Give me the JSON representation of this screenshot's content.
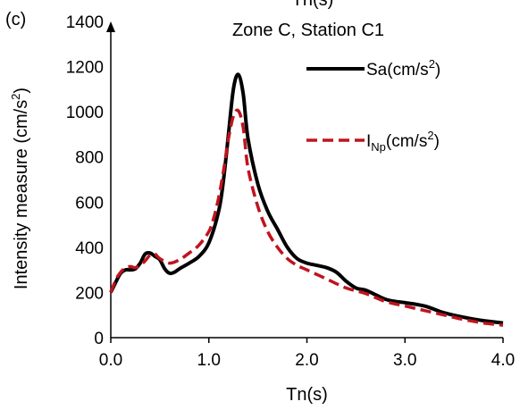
{
  "chart_data": {
    "type": "line",
    "panel_label": "(c)",
    "title": "Zone C, Station C1",
    "top_cut_label": "Tn(s)",
    "xlabel": "Tn(s)",
    "ylabel": "Intensity measure (cm/s²)",
    "xlim": [
      0.0,
      4.0
    ],
    "ylim": [
      0,
      1400
    ],
    "xticks": [
      "0.0",
      "1.0",
      "2.0",
      "3.0",
      "4.0"
    ],
    "yticks": [
      "0",
      "200",
      "400",
      "600",
      "800",
      "1000",
      "1200",
      "1400"
    ],
    "grid": false,
    "legend_position": "top-right",
    "series": [
      {
        "name": "Sa(cm/s²)",
        "legend_main": "Sa",
        "legend_sub": "",
        "legend_unit": "(cm/s",
        "legend_sup": "2",
        "legend_close": ")",
        "color": "#000000",
        "style": "solid",
        "x": [
          0.0,
          0.05,
          0.1,
          0.15,
          0.2,
          0.25,
          0.3,
          0.35,
          0.4,
          0.45,
          0.5,
          0.55,
          0.6,
          0.65,
          0.7,
          0.8,
          0.9,
          1.0,
          1.1,
          1.15,
          1.2,
          1.25,
          1.3,
          1.35,
          1.4,
          1.5,
          1.6,
          1.7,
          1.8,
          1.9,
          2.0,
          2.1,
          2.2,
          2.3,
          2.4,
          2.5,
          2.6,
          2.7,
          2.8,
          2.9,
          3.0,
          3.2,
          3.4,
          3.6,
          3.8,
          4.0
        ],
        "y": [
          200,
          245,
          285,
          300,
          300,
          305,
          330,
          370,
          375,
          360,
          345,
          305,
          285,
          290,
          305,
          330,
          360,
          420,
          560,
          700,
          900,
          1100,
          1165,
          1080,
          880,
          680,
          560,
          480,
          400,
          350,
          330,
          320,
          310,
          290,
          250,
          220,
          210,
          190,
          170,
          160,
          155,
          140,
          110,
          90,
          75,
          65
        ]
      },
      {
        "name": "I_Np(cm/s²)",
        "legend_main": "I",
        "legend_sub": "Np",
        "legend_unit": "(cm/s",
        "legend_sup": "2",
        "legend_close": ")",
        "color": "#c0141e",
        "style": "dashed",
        "x": [
          0.0,
          0.05,
          0.1,
          0.15,
          0.2,
          0.25,
          0.3,
          0.35,
          0.4,
          0.45,
          0.5,
          0.6,
          0.7,
          0.8,
          0.9,
          1.0,
          1.05,
          1.1,
          1.15,
          1.2,
          1.25,
          1.3,
          1.35,
          1.4,
          1.5,
          1.6,
          1.7,
          1.8,
          1.9,
          2.0,
          2.2,
          2.4,
          2.6,
          2.8,
          3.0,
          3.2,
          3.4,
          3.6,
          3.8,
          4.0
        ],
        "y": [
          200,
          255,
          290,
          310,
          315,
          310,
          320,
          340,
          365,
          370,
          350,
          330,
          345,
          375,
          410,
          470,
          530,
          620,
          740,
          880,
          980,
          1005,
          930,
          750,
          580,
          470,
          400,
          350,
          320,
          300,
          260,
          220,
          195,
          160,
          140,
          120,
          100,
          80,
          65,
          55
        ]
      }
    ]
  }
}
